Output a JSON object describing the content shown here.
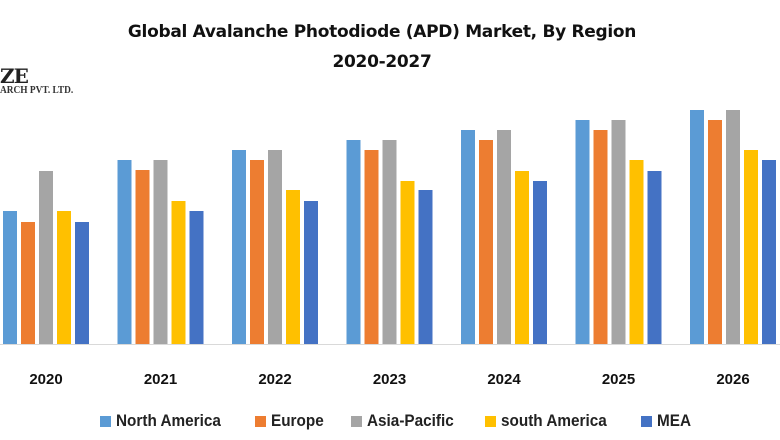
{
  "logo": {
    "line1": "ZE",
    "line2": "ARCH PVT. LTD."
  },
  "chart_data": {
    "type": "bar",
    "title": "Global Avalanche Photodiode (APD) Market, By Region",
    "subtitle": "2020-2027",
    "xlabel": "",
    "ylabel": "",
    "ylim": [
      0,
      24
    ],
    "grid": false,
    "legend_position": "bottom",
    "categories": [
      "2020",
      "2021",
      "2022",
      "2023",
      "2024",
      "2025",
      "2026"
    ],
    "series": [
      {
        "name": "North America",
        "color": "#5b9bd5",
        "values": [
          13.3,
          18.4,
          19.4,
          20.4,
          21.4,
          22.4,
          23.4
        ]
      },
      {
        "name": "Europe",
        "color": "#ed7d31",
        "values": [
          12.2,
          17.4,
          18.4,
          19.4,
          20.4,
          21.4,
          22.4
        ]
      },
      {
        "name": "Asia-Pacific",
        "color": "#a5a5a5",
        "values": [
          17.3,
          18.4,
          19.4,
          20.4,
          21.4,
          22.4,
          23.4
        ]
      },
      {
        "name": "south America",
        "color": "#ffc000",
        "values": [
          13.3,
          14.3,
          15.4,
          16.3,
          17.3,
          18.4,
          19.4
        ]
      },
      {
        "name": "MEA",
        "color": "#4472c4",
        "values": [
          12.2,
          13.3,
          14.3,
          15.4,
          16.3,
          17.3,
          18.4
        ]
      }
    ]
  }
}
